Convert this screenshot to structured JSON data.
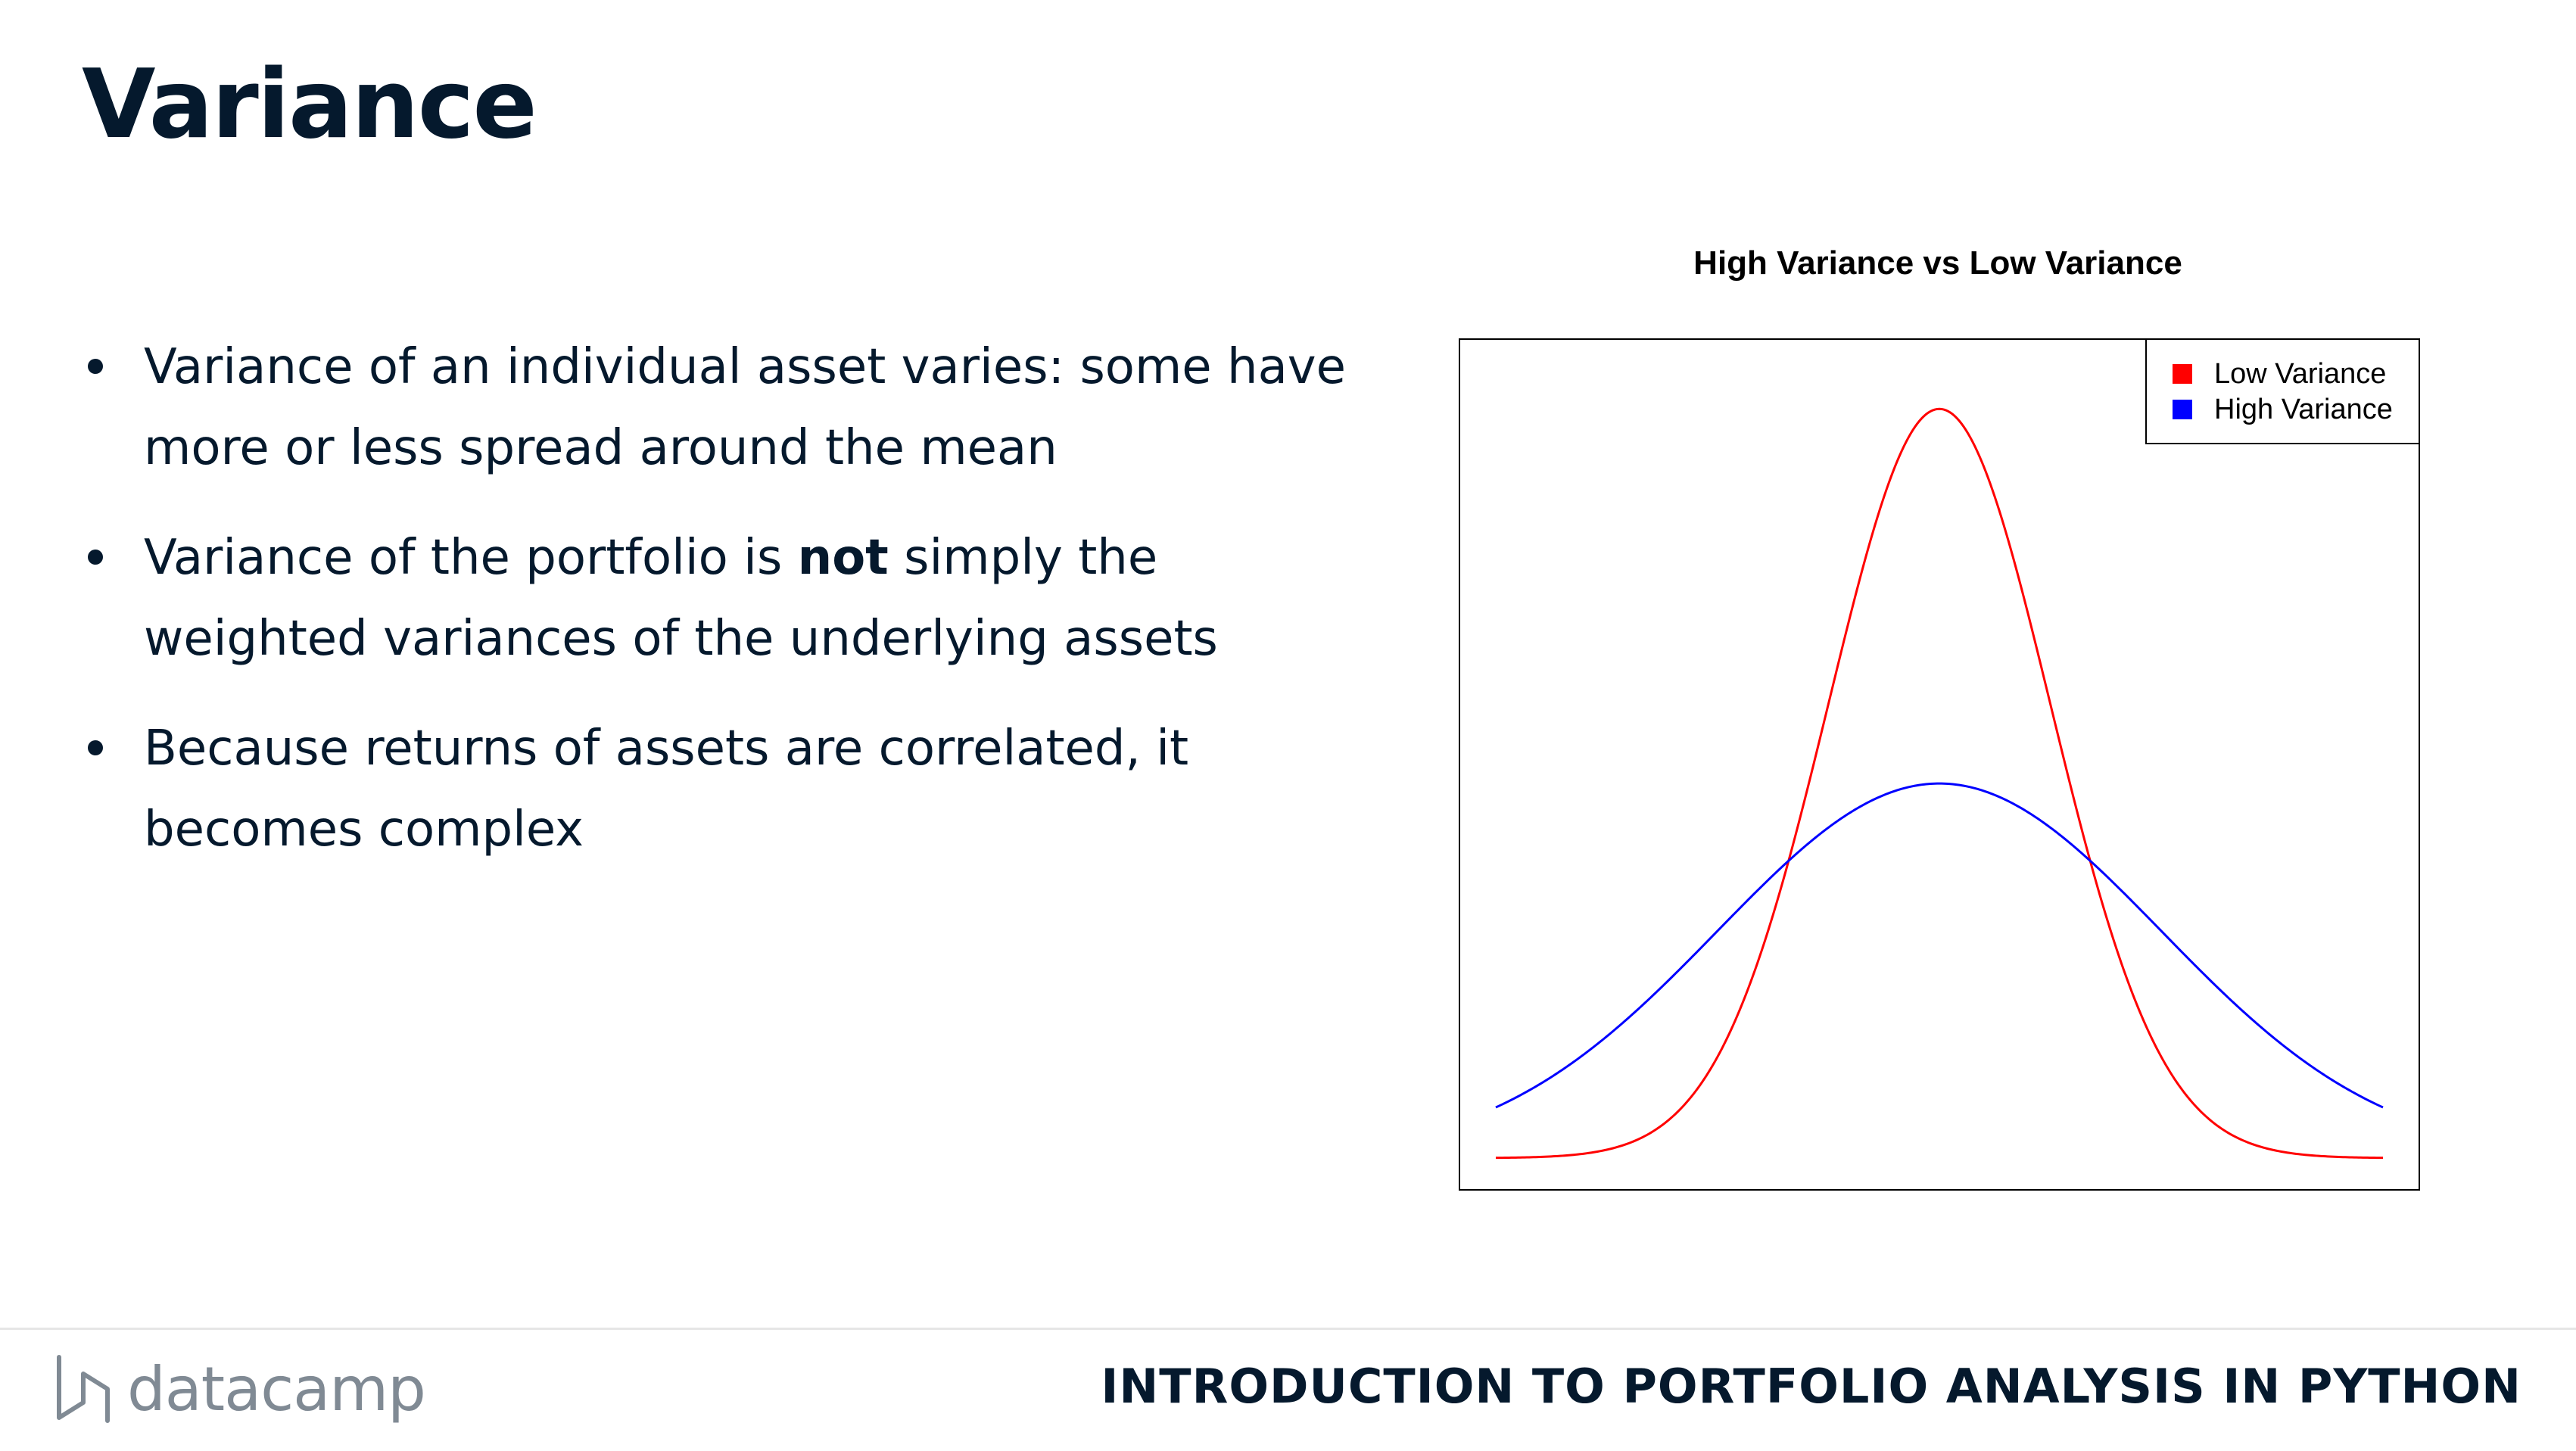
{
  "slide": {
    "title": "Variance",
    "bullets": [
      {
        "parts": [
          "Variance of an individual asset varies: some have more or less spread around the mean"
        ]
      },
      {
        "before": "Variance of the portfolio is ",
        "bold": "not",
        "after": " simply the weighted variances of the underlying assets"
      },
      {
        "parts": [
          "Because returns of assets are correlated, it becomes complex"
        ]
      }
    ]
  },
  "chart_data": {
    "type": "line",
    "title": "High Variance vs Low Variance",
    "xlabel": "",
    "ylabel": "",
    "xlim": [
      -4,
      4
    ],
    "ylim": [
      0,
      0.42
    ],
    "grid": false,
    "legend_position": "top-right",
    "series": [
      {
        "name": "Low Variance",
        "color": "#ff0000",
        "mean": 0,
        "sd": 1
      },
      {
        "name": "High Variance",
        "color": "#0000ff",
        "mean": 0,
        "sd": 2
      }
    ]
  },
  "footer": {
    "logo_text": "datacamp",
    "logo_icon": "datacamp-logo-icon",
    "course": "INTRODUCTION TO PORTFOLIO ANALYSIS IN PYTHON"
  }
}
